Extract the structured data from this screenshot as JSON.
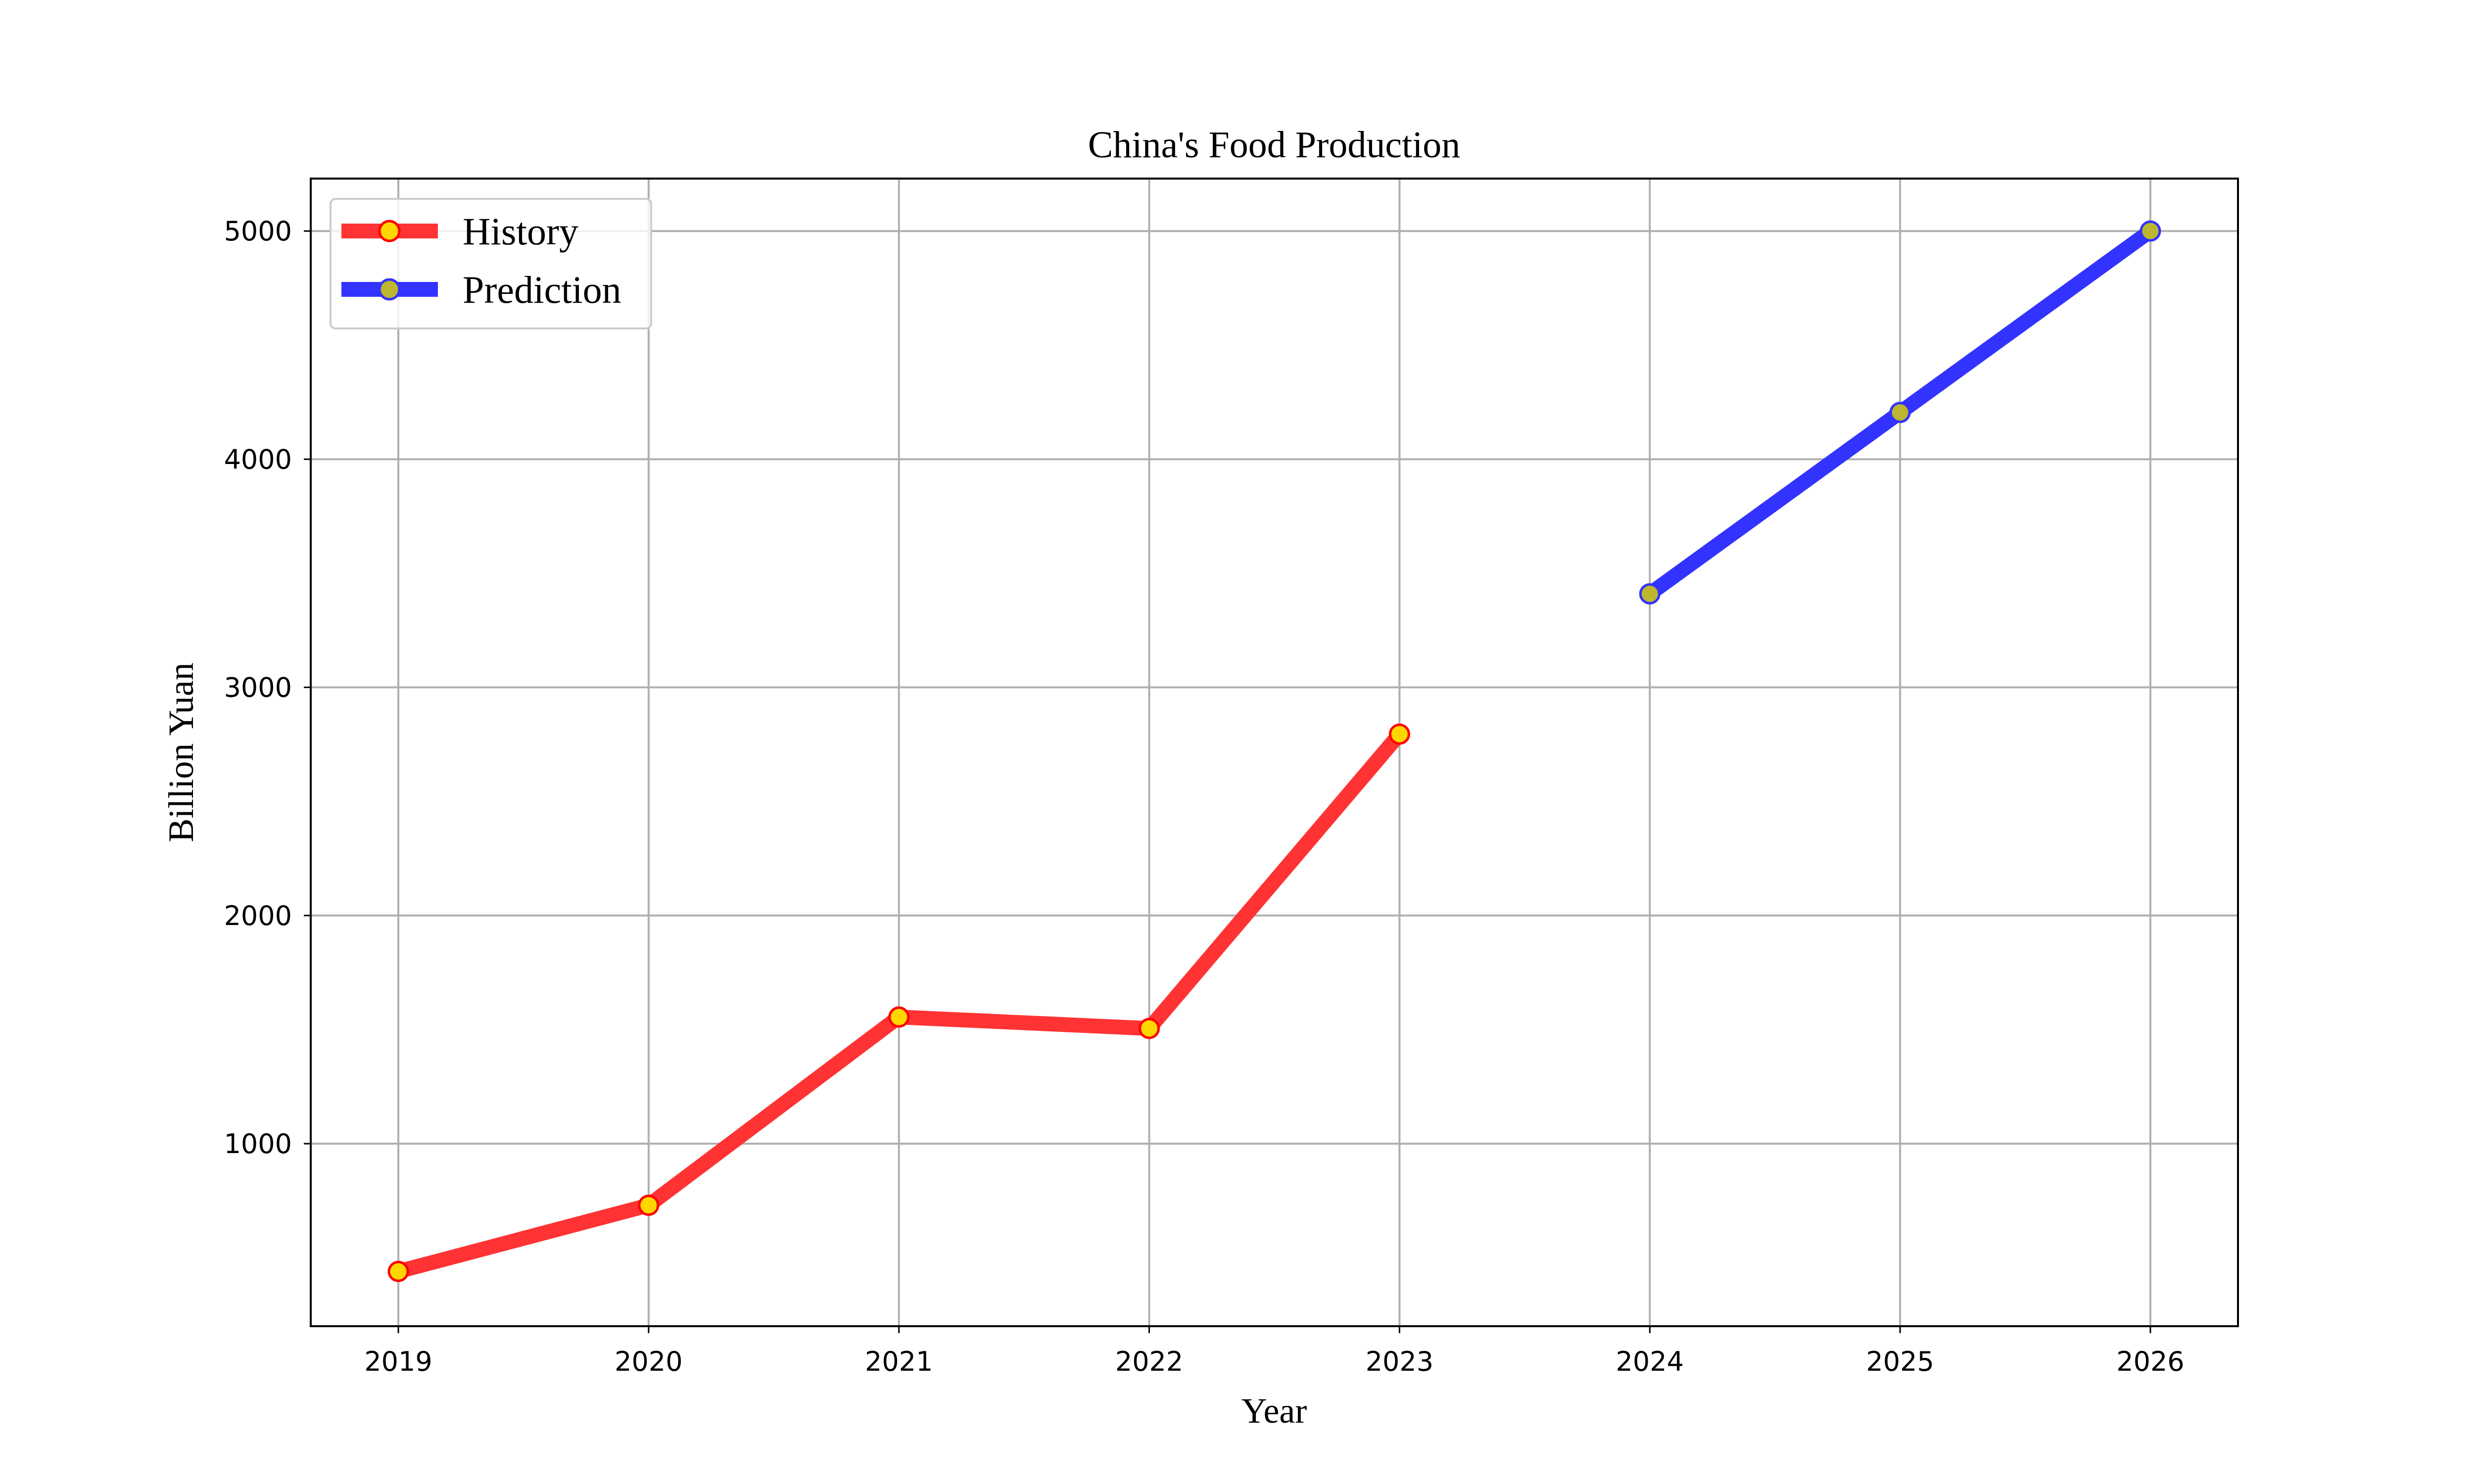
{
  "chart_data": {
    "type": "line",
    "title": "China's Food Production",
    "xlabel": "Year",
    "ylabel": "Billion Yuan",
    "xlim": [
      2018.65,
      2026.35
    ],
    "ylim": [
      200,
      5230
    ],
    "xticks": [
      2019,
      2020,
      2021,
      2022,
      2023,
      2024,
      2025,
      2026
    ],
    "yticks": [
      1000,
      2000,
      3000,
      4000,
      5000
    ],
    "grid": true,
    "legend_position": "upper-left",
    "series": [
      {
        "name": "History",
        "line_color": "#ff3333",
        "marker_face": "#ffd700",
        "marker_edge": "#ff0000",
        "points": [
          [
            2019,
            440
          ],
          [
            2020,
            730
          ],
          [
            2021,
            1555
          ],
          [
            2022,
            1505
          ],
          [
            2023,
            2795
          ]
        ]
      },
      {
        "name": "Prediction",
        "line_color": "#3333ff",
        "marker_face": "#bdb62f",
        "marker_edge": "#3333ff",
        "points": [
          [
            2024,
            3410
          ],
          [
            2025,
            4205
          ],
          [
            2026,
            5000
          ]
        ]
      }
    ]
  }
}
